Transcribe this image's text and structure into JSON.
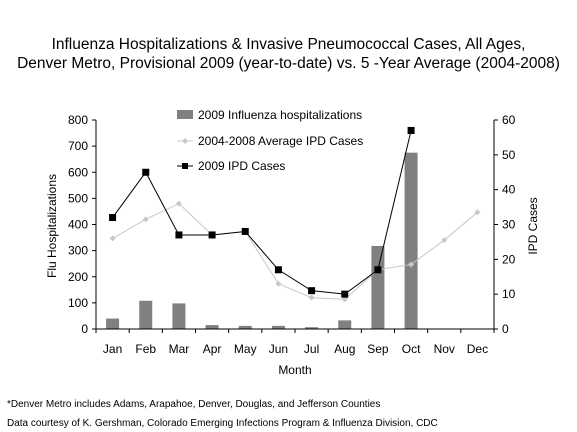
{
  "chart_data": {
    "type": "bar+line",
    "title_line1": "Influenza Hospitalizations & Invasive Pneumococcal Cases, All Ages,",
    "title_line2": "Denver Metro, Provisional 2009 (year-to-date) vs. 5 -Year Average (2004-2008)",
    "xlabel": "Month",
    "ylabel_left": "Flu Hospitalizations",
    "ylabel_right": "IPD Cases",
    "categories": [
      "Jan",
      "Feb",
      "Mar",
      "Apr",
      "May",
      "Jun",
      "Jul",
      "Aug",
      "Sep",
      "Oct",
      "Nov",
      "Dec"
    ],
    "ylim_left": [
      0,
      800
    ],
    "yticks_left": [
      0,
      100,
      200,
      300,
      400,
      500,
      600,
      700,
      800
    ],
    "ylim_right": [
      0,
      60
    ],
    "yticks_right": [
      0,
      10,
      20,
      30,
      40,
      50,
      60
    ],
    "grid": false,
    "legend_position": "top-center",
    "series": [
      {
        "name": "2009 Influenza hospitalizations",
        "kind": "bar",
        "axis": "left",
        "color": "#808080",
        "values": [
          40,
          108,
          98,
          15,
          12,
          12,
          7,
          33,
          318,
          675,
          null,
          null
        ]
      },
      {
        "name": "2004-2008 Average IPD Cases",
        "kind": "line",
        "axis": "right",
        "color": "#c8c8c8",
        "marker": "diamond",
        "values": [
          26,
          31.5,
          36,
          27,
          28,
          13,
          9,
          8.5,
          17,
          18.5,
          25.5,
          33.5
        ]
      },
      {
        "name": "2009 IPD Cases",
        "kind": "line",
        "axis": "right",
        "color": "#000000",
        "marker": "square",
        "values": [
          32,
          45,
          27,
          27,
          28,
          17,
          11,
          10,
          17,
          57,
          null,
          null
        ]
      }
    ]
  },
  "footnotes": {
    "line1": "*Denver Metro includes Adams, Arapahoe, Denver, Douglas, and Jefferson Counties",
    "line2": "Data courtesy of K. Gershman, Colorado Emerging Infections Program & Influenza Division, CDC"
  }
}
